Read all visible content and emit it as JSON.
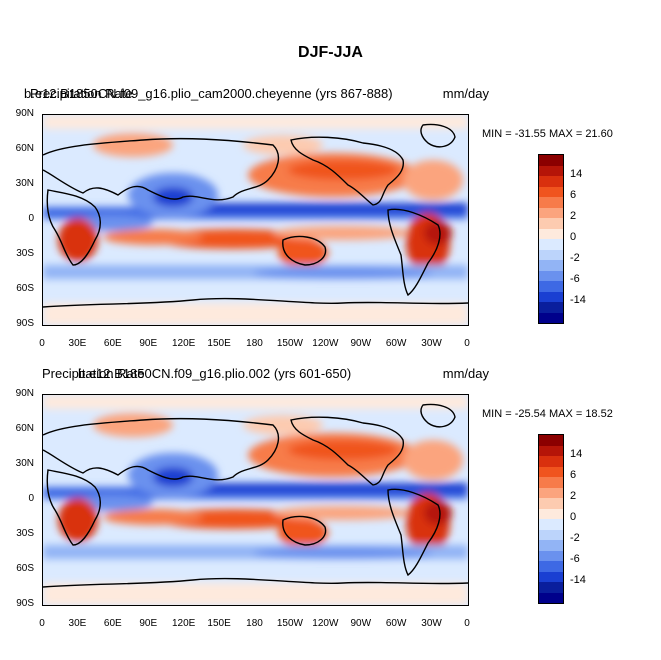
{
  "title": "DJF-JJA",
  "panels": [
    {
      "label_left": "b.e12.B1850CN.f09_g16.plio_cam2000.cheyenne (yrs 867-888)",
      "label_overlap": "Precipitation Rate",
      "label_right": "mm/day",
      "min_max": "MIN = -31.55 MAX =  21.60"
    },
    {
      "label_left": "b.e12.B1850CN.f09_g16.plio.002 (yrs 601-650)",
      "label_overlap": "Precipitation Rate",
      "label_right": "mm/day",
      "min_max": "MIN = -25.54 MAX =  18.52"
    }
  ],
  "axes": {
    "lat_labels": [
      "90N",
      "60N",
      "30N",
      "0",
      "30S",
      "60S",
      "90S"
    ],
    "lon_labels": [
      "0",
      "30E",
      "60E",
      "90E",
      "120E",
      "150E",
      "180",
      "150W",
      "120W",
      "90W",
      "60W",
      "30W",
      "0"
    ]
  },
  "colorbar": {
    "labels": [
      "14",
      "6",
      "2",
      "0",
      "-2",
      "-6",
      "-14"
    ],
    "colors": [
      "#8b0000",
      "#b51508",
      "#d9300e",
      "#f0541e",
      "#f77b4a",
      "#fba47e",
      "#fdcbb0",
      "#feeadd",
      "#dbeaff",
      "#bcd4fb",
      "#92b4f5",
      "#6a91ee",
      "#3e69e4",
      "#1a3fd2",
      "#0a1e9c",
      "#00008b"
    ]
  }
}
